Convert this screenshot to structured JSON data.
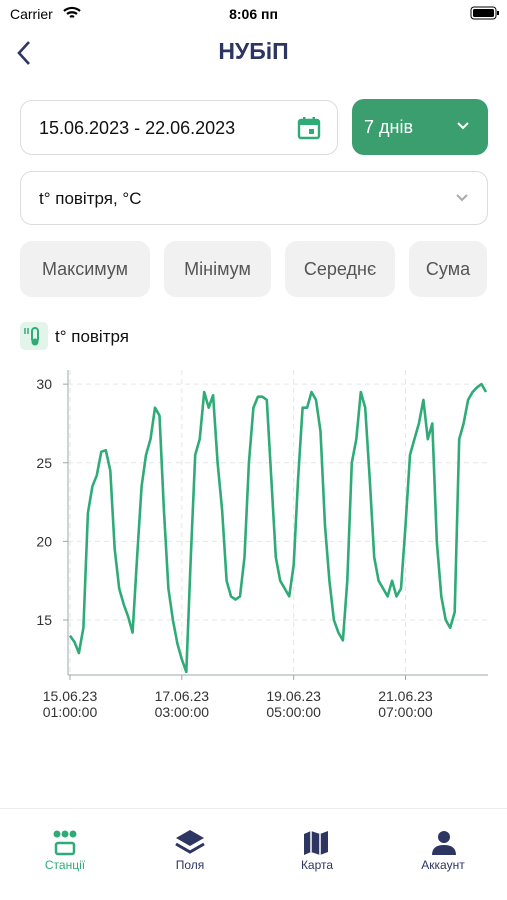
{
  "status_bar": {
    "carrier": "Carrier",
    "time": "8:06 пп"
  },
  "header": {
    "title": "НУБіП"
  },
  "filters": {
    "date_range": "15.06.2023 - 22.06.2023",
    "period": "7 днів",
    "parameter": "t° повітря, °C"
  },
  "aggregations": [
    "Максимум",
    "Мінімум",
    "Середнє",
    "Сума"
  ],
  "chart_data": {
    "type": "line",
    "legend": "t° повітря",
    "categories": [
      "15.06.23\n01:00:00",
      null,
      null,
      null,
      null,
      null,
      null,
      null,
      null,
      null,
      null,
      null,
      null,
      null,
      null,
      null,
      null,
      null,
      null,
      null,
      null,
      null,
      null,
      null,
      null,
      "17.06.23\n03:00:00",
      null,
      null,
      null,
      null,
      null,
      null,
      null,
      null,
      null,
      null,
      null,
      null,
      null,
      null,
      null,
      null,
      null,
      null,
      null,
      null,
      null,
      null,
      null,
      null,
      "19.06.23\n05:00:00",
      null,
      null,
      null,
      null,
      null,
      null,
      null,
      null,
      null,
      null,
      null,
      null,
      null,
      null,
      null,
      null,
      null,
      null,
      null,
      null,
      null,
      null,
      null,
      null,
      "21.06.23\n07:00:00",
      null,
      null,
      null,
      null,
      null,
      null,
      null,
      null,
      null,
      null,
      null,
      null,
      null,
      null,
      null,
      null,
      null,
      null
    ],
    "series": [
      {
        "name": "t° повітря",
        "color": "#2fab78",
        "values": [
          14.0,
          13.6,
          12.9,
          14.5,
          21.8,
          23.5,
          24.2,
          25.7,
          25.8,
          24.5,
          19.5,
          17,
          16,
          15.2,
          14.2,
          19,
          23.5,
          25.5,
          26.5,
          28.5,
          28,
          22,
          17,
          15,
          13.5,
          12.5,
          11.7,
          19,
          25.5,
          26.5,
          29.5,
          28.5,
          29.3,
          25,
          22,
          17.5,
          16.5,
          16.3,
          16.5,
          19,
          25,
          28.5,
          29.2,
          29.2,
          29.0,
          24,
          19,
          17.5,
          17,
          16.5,
          18.5,
          24,
          28.5,
          28.5,
          29.5,
          29,
          27,
          21,
          17.5,
          15,
          14.2,
          13.7,
          17.5,
          25,
          26.5,
          29.5,
          28.5,
          24,
          19,
          17.5,
          17,
          16.5,
          17.5,
          16.5,
          17,
          21,
          25.5,
          26.5,
          27.5,
          29,
          26.5,
          27.5,
          20,
          16.5,
          15,
          14.5,
          15.5,
          26.5,
          27.5,
          29,
          29.5,
          29.8,
          30,
          29.5
        ]
      }
    ],
    "ylim": [
      11.5,
      30.9
    ],
    "yticks": [
      15,
      20,
      25,
      30
    ],
    "grid": true
  },
  "tab_bar": {
    "tabs": [
      "Станції",
      "Поля",
      "Карта",
      "Аккаунт"
    ]
  }
}
